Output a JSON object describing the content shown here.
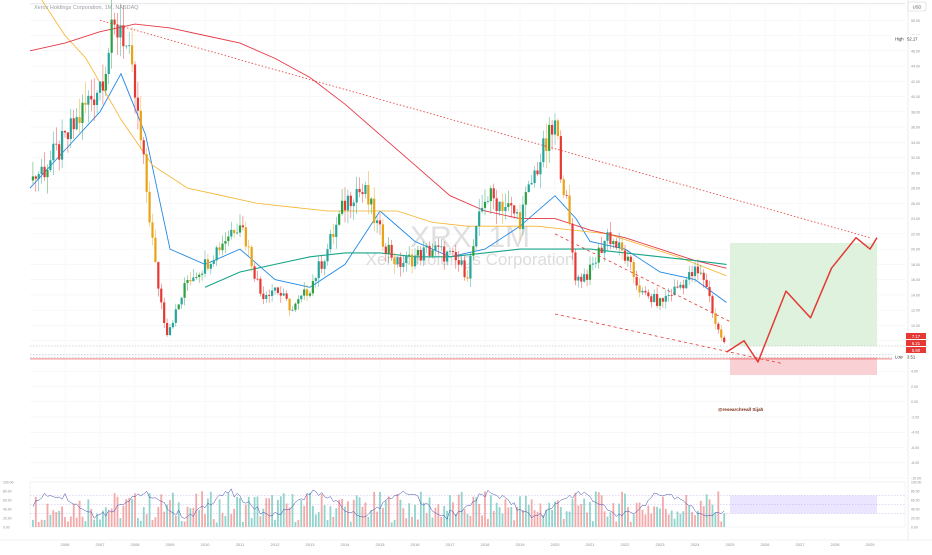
{
  "header": {
    "symbol_line": "Xerox Holdings Corporation, 1M, NASDAQ",
    "currency_button": "USD"
  },
  "watermark": {
    "ticker": "XRX, 1M",
    "name": "Xerox Holdings Corporation"
  },
  "annotation": {
    "text": "@researchreall Sijah"
  },
  "colors": {
    "bull": "#26a69a",
    "bull_alt": "#2ea043",
    "bear": "#e53935",
    "pullback": "#e8a317",
    "ma_short": "#1e88e5",
    "ma_mid": "#f4b32a",
    "ma_long": "#e63946",
    "ma_teal": "#17a589",
    "projection": "#e53935",
    "target_zone": "#d8f0d8",
    "stop_zone": "#f8c9cc",
    "indicator_bg": "#ece5ff"
  },
  "price_scale": {
    "labels": [
      "52.00",
      "50.00",
      "48.00",
      "46.00",
      "44.00",
      "42.00",
      "40.00",
      "38.00",
      "36.00",
      "34.00",
      "32.00",
      "30.00",
      "28.00",
      "26.00",
      "24.00",
      "22.00",
      "20.00",
      "18.00",
      "16.00",
      "14.00",
      "12.00",
      "10.00",
      "8.00",
      "6.00",
      "4.00",
      "2.00",
      "0.00",
      "-2.00",
      "-4.00",
      "-6.00",
      "-8.00",
      "-10.00"
    ],
    "high_label": "High",
    "high_value": "52.17",
    "low_label": "Low",
    "low_value": "3.51",
    "badge_1": "7.17",
    "badge_2": "6.21",
    "badge_3": "5.80"
  },
  "indicator_scale": {
    "labels": [
      "100.00",
      "80.00",
      "60.00",
      "40.00",
      "20.00",
      "0.00"
    ]
  },
  "time_axis": {
    "labels": [
      "2006",
      "2007",
      "2008",
      "2009",
      "2010",
      "2011",
      "2012",
      "2013",
      "2014",
      "2015",
      "2016",
      "2017",
      "2018",
      "2019",
      "2020",
      "2021",
      "2022",
      "2023",
      "2024",
      "2025",
      "2026",
      "2027",
      "2028",
      "2029"
    ]
  },
  "chart_data": {
    "type": "candlestick",
    "title": "Xerox Holdings Corporation, 1M, NASDAQ",
    "xlabel": "",
    "ylabel": "",
    "ylim": [
      -10,
      52
    ],
    "log_scale": false,
    "grid": true,
    "x_range": [
      2005,
      2030
    ],
    "high": 52.17,
    "low": 3.51,
    "price_series": {
      "t": [
        2005.0,
        2005.5,
        2006.0,
        2006.5,
        2007.0,
        2007.3,
        2007.6,
        2008.0,
        2008.3,
        2008.6,
        2008.9,
        2009.2,
        2009.5,
        2010.0,
        2010.5,
        2011.0,
        2011.3,
        2011.6,
        2012.0,
        2012.5,
        2013.0,
        2013.5,
        2014.0,
        2014.3,
        2014.6,
        2015.0,
        2015.5,
        2016.0,
        2016.5,
        2017.0,
        2017.5,
        2018.0,
        2018.5,
        2019.0,
        2019.5,
        2020.0,
        2020.3,
        2020.6,
        2021.0,
        2021.5,
        2022.0,
        2022.5,
        2023.0,
        2023.5,
        2024.0,
        2024.3,
        2024.6,
        2024.9
      ],
      "close": [
        29.0,
        31.0,
        34.0,
        38.0,
        42.0,
        47.0,
        50.0,
        40.0,
        29.0,
        17.0,
        9.0,
        12.0,
        16.0,
        18.0,
        21.0,
        24.0,
        19.0,
        14.0,
        15.0,
        12.0,
        15.0,
        20.0,
        26.0,
        28.0,
        27.0,
        22.0,
        18.0,
        19.0,
        20.0,
        19.0,
        17.0,
        27.0,
        26.0,
        24.0,
        31.0,
        36.0,
        27.0,
        16.0,
        17.0,
        22.0,
        19.0,
        14.0,
        13.0,
        15.0,
        17.0,
        16.0,
        10.0,
        7.0
      ]
    },
    "moving_averages": [
      {
        "t": [
          2005.0,
          2006.0,
          2007.0,
          2007.6,
          2008.3,
          2009.0,
          2010.0,
          2011.0,
          2012.0,
          2013.0,
          2014.0,
          2015.0,
          2016.0,
          2017.0,
          2018.0,
          2019.0,
          2020.0,
          2020.6,
          2021.0,
          2022.0,
          2023.0,
          2024.0,
          2024.9
        ],
        "v": [
          28.0,
          33.0,
          38.0,
          43.0,
          35.0,
          20.0,
          18.0,
          20.0,
          16.0,
          15.0,
          18.0,
          25.0,
          21.0,
          19.0,
          20.0,
          23.0,
          27.0,
          24.0,
          21.0,
          20.0,
          17.0,
          16.0,
          13.0
        ]
      },
      {
        "t": [
          2005.0,
          2006.0,
          2006.6,
          2007.6,
          2008.5,
          2009.5,
          2010.5,
          2011.5,
          2012.5,
          2013.5,
          2014.5,
          2015.5,
          2016.5,
          2017.5,
          2018.5,
          2019.5,
          2020.5,
          2021.5,
          2022.5,
          2023.5,
          2024.9
        ],
        "v": [
          55.0,
          48.0,
          45.0,
          37.0,
          31.0,
          28.0,
          27.0,
          26.0,
          25.5,
          25.0,
          25.0,
          25.0,
          23.5,
          23.0,
          23.0,
          23.0,
          22.5,
          22.0,
          20.5,
          19.0,
          16.5
        ]
      },
      {
        "t": [
          2005.0,
          2006.0,
          2007.0,
          2008.0,
          2009.0,
          2010.0,
          2011.0,
          2012.0,
          2013.0,
          2014.0,
          2015.0,
          2016.0,
          2017.0,
          2018.0,
          2019.0,
          2020.0,
          2021.0,
          2022.0,
          2023.0,
          2024.0,
          2024.9
        ],
        "v": [
          46.0,
          47.0,
          48.5,
          49.5,
          49.0,
          48.0,
          47.0,
          45.0,
          42.5,
          39.0,
          35.0,
          31.0,
          27.0,
          25.0,
          24.0,
          24.0,
          22.5,
          21.5,
          20.0,
          18.5,
          17.5
        ]
      },
      {
        "t": [
          2010.0,
          2011.0,
          2012.0,
          2013.0,
          2014.0,
          2015.0,
          2016.0,
          2017.0,
          2018.0,
          2019.0,
          2020.0,
          2021.0,
          2022.0,
          2023.0,
          2024.0,
          2024.9
        ],
        "v": [
          15.0,
          17.0,
          18.0,
          19.0,
          19.5,
          19.5,
          19.0,
          19.0,
          19.5,
          20.0,
          20.0,
          20.0,
          19.5,
          19.0,
          18.5,
          18.0
        ]
      }
    ],
    "trendlines": [
      {
        "t": [
          2007.0,
          2029.0
        ],
        "v": [
          50.0,
          21.5
        ]
      },
      {
        "t": [
          2020.0,
          2025.0
        ],
        "v": [
          22.0,
          10.5
        ]
      },
      {
        "t": [
          2020.0,
          2026.5
        ],
        "v": [
          11.5,
          5.0
        ]
      }
    ],
    "projection": {
      "t": [
        2024.9,
        2025.4,
        2025.8,
        2026.6,
        2027.3,
        2027.9,
        2028.6,
        2029.0,
        2029.2
      ],
      "v": [
        6.5,
        8.0,
        5.2,
        14.5,
        11.0,
        17.5,
        21.5,
        20.0,
        21.5
      ]
    },
    "target_zone": {
      "t": [
        2025.0,
        2029.2
      ],
      "v": [
        7.3,
        20.8
      ]
    },
    "stop_zone": {
      "t": [
        2025.0,
        2029.2
      ],
      "v": [
        3.5,
        5.8
      ]
    },
    "indicator": {
      "ylim": [
        0,
        100
      ],
      "band": [
        30,
        70
      ]
    }
  }
}
